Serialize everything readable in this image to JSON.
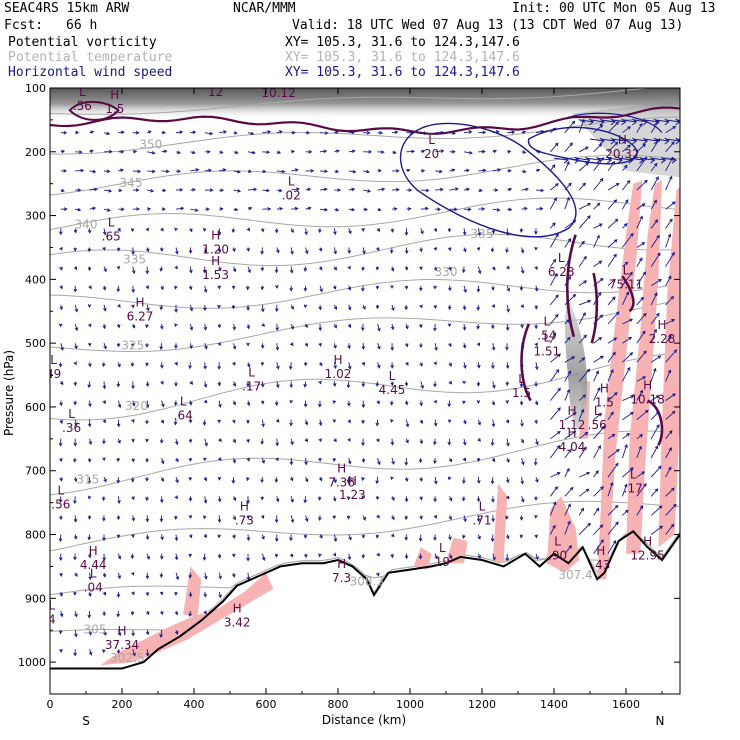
{
  "header": {
    "model": "SEAC4RS 15km ARW",
    "org": "NCAR/MMM",
    "init": "Init: 00 UTC Mon 05 Aug 13",
    "fcst_label": "Fcst:",
    "fcst_value": "66 h",
    "valid": "Valid: 18 UTC Wed 07 Aug 13 (13 CDT Wed 07 Aug 13)",
    "fields": [
      {
        "name": "Potential vorticity",
        "xy": "XY= 105.3, 31.6 to 124.3,147.6",
        "color": "#000000"
      },
      {
        "name": "Potential temperature",
        "xy": "XY= 105.3, 31.6 to 124.3,147.6",
        "color": "#b4b4b4"
      },
      {
        "name": "Horizontal wind speed",
        "xy": "XY= 105.3, 31.6 to 124.3,147.6",
        "color": "#1a1a8c"
      }
    ]
  },
  "colors": {
    "pv_fill": "#f7b3b3",
    "pv_contour": "#5a0a45",
    "theta": "#a8a8a8",
    "wind": "#1a1a8c",
    "terrain": "#000000",
    "shade": "#8a8a8a"
  },
  "chart_data": {
    "type": "cross-section",
    "xlabel": "Distance (km)",
    "ylabel": "Pressure (hPa)",
    "x_ticks": [
      0,
      200,
      400,
      600,
      800,
      1000,
      1200,
      1400,
      1600
    ],
    "y_ticks": [
      100,
      200,
      300,
      400,
      500,
      600,
      700,
      800,
      900,
      1000
    ],
    "xlim": [
      0,
      1750
    ],
    "ylim": [
      1050,
      100
    ],
    "y_scale": "linear",
    "left_end": "S",
    "right_end": "N",
    "terrain": {
      "x": [
        0,
        200,
        260,
        300,
        360,
        420,
        480,
        520,
        560,
        600,
        640,
        700,
        760,
        800,
        840,
        880,
        900,
        940,
        1000,
        1060,
        1100,
        1140,
        1200,
        1260,
        1320,
        1360,
        1400,
        1440,
        1480,
        1520,
        1540,
        1580,
        1620,
        1660,
        1700,
        1750
      ],
      "p": [
        1010,
        1010,
        1000,
        980,
        960,
        935,
        905,
        880,
        870,
        860,
        850,
        845,
        845,
        840,
        850,
        870,
        895,
        860,
        855,
        850,
        845,
        835,
        840,
        850,
        830,
        850,
        830,
        845,
        820,
        870,
        860,
        810,
        795,
        820,
        840,
        800
      ]
    },
    "theta_labels": [
      {
        "text": "350",
        "x": 280,
        "p": 195
      },
      {
        "text": "345",
        "x": 225,
        "p": 255
      },
      {
        "text": "340",
        "x": 100,
        "p": 320
      },
      {
        "text": "335",
        "x": 235,
        "p": 375
      },
      {
        "text": "330",
        "x": 1100,
        "p": 395
      },
      {
        "text": "335",
        "x": 1200,
        "p": 335
      },
      {
        "text": "325",
        "x": 230,
        "p": 510
      },
      {
        "text": "320",
        "x": 240,
        "p": 605
      },
      {
        "text": "315",
        "x": 105,
        "p": 720
      },
      {
        "text": "305",
        "x": 125,
        "p": 955
      },
      {
        "text": "302.5",
        "x": 215,
        "p": 1000
      },
      {
        "text": "307.4",
        "x": 1460,
        "p": 870
      },
      {
        "text": "308.3",
        "x": 880,
        "p": 880
      }
    ],
    "extrema": [
      {
        "kind": "L",
        "value": ".56",
        "x": 90,
        "p": 125
      },
      {
        "kind": "H",
        "value": "1.5",
        "x": 180,
        "p": 130
      },
      {
        "kind": "L",
        "value": "12",
        "x": 460,
        "p": 103
      },
      {
        "kind": "H",
        "value": "10.12",
        "x": 635,
        "p": 105
      },
      {
        "kind": "L",
        "value": ".02",
        "x": 670,
        "p": 265
      },
      {
        "kind": "L",
        "value": ".65",
        "x": 170,
        "p": 330
      },
      {
        "kind": "H",
        "value": "1.20",
        "x": 460,
        "p": 350
      },
      {
        "kind": "H",
        "value": "1.53",
        "x": 460,
        "p": 390
      },
      {
        "kind": "H",
        "value": "6.27",
        "x": 250,
        "p": 455
      },
      {
        "kind": "L",
        "value": "49",
        "x": 10,
        "p": 545
      },
      {
        "kind": "L",
        "value": ".17",
        "x": 560,
        "p": 565
      },
      {
        "kind": "H",
        "value": "1.02",
        "x": 800,
        "p": 545
      },
      {
        "kind": "L",
        "value": "4.45",
        "x": 950,
        "p": 570
      },
      {
        "kind": "L",
        "value": ".36",
        "x": 60,
        "p": 630
      },
      {
        "kind": "L",
        "value": ".64",
        "x": 370,
        "p": 610
      },
      {
        "kind": "H",
        "value": "7.36",
        "x": 810,
        "p": 715
      },
      {
        "kind": "H",
        "value": "1.23",
        "x": 840,
        "p": 735
      },
      {
        "kind": "L",
        "value": ".56",
        "x": 30,
        "p": 750
      },
      {
        "kind": "H",
        "value": ".73",
        "x": 540,
        "p": 775
      },
      {
        "kind": "L",
        "value": ".71",
        "x": 1200,
        "p": 775
      },
      {
        "kind": "H",
        "value": "4.44",
        "x": 120,
        "p": 845
      },
      {
        "kind": "L",
        "value": ".04",
        "x": 120,
        "p": 880
      },
      {
        "kind": "H",
        "value": "7.3",
        "x": 810,
        "p": 865
      },
      {
        "kind": "H",
        "value": "3.42",
        "x": 520,
        "p": 935
      },
      {
        "kind": "L",
        "value": "4",
        "x": 5,
        "p": 930
      },
      {
        "kind": "H",
        "value": "37.34",
        "x": 200,
        "p": 970
      },
      {
        "kind": "H",
        "value": "20.32",
        "x": 1590,
        "p": 200
      },
      {
        "kind": "L",
        "value": "20",
        "x": 1060,
        "p": 200
      },
      {
        "kind": "L",
        "value": "6.28",
        "x": 1420,
        "p": 385
      },
      {
        "kind": "L",
        "value": "75.11",
        "x": 1600,
        "p": 405
      },
      {
        "kind": "L",
        "value": ".54",
        "x": 1380,
        "p": 485
      },
      {
        "kind": "H",
        "value": "2.28",
        "x": 1700,
        "p": 490
      },
      {
        "kind": "L",
        "value": "1.5",
        "x": 1310,
        "p": 575
      },
      {
        "kind": "H",
        "value": "1.5",
        "x": 1540,
        "p": 590
      },
      {
        "kind": "H",
        "value": "10.18",
        "x": 1660,
        "p": 585
      },
      {
        "kind": "H",
        "value": "1.12",
        "x": 1450,
        "p": 625
      },
      {
        "kind": "L",
        "value": ".56",
        "x": 1520,
        "p": 625
      },
      {
        "kind": "H",
        "value": "4.04",
        "x": 1450,
        "p": 660
      },
      {
        "kind": "L",
        "value": ".17",
        "x": 1620,
        "p": 725
      },
      {
        "kind": "L",
        "value": ".90",
        "x": 1410,
        "p": 830
      },
      {
        "kind": "H",
        "value": ".43",
        "x": 1530,
        "p": 845
      },
      {
        "kind": "H",
        "value": "12.95",
        "x": 1660,
        "p": 830
      },
      {
        "kind": "L",
        "value": "19",
        "x": 1090,
        "p": 840
      },
      {
        "kind": "L",
        "value": "1.51",
        "x": 1380,
        "p": 510
      }
    ]
  }
}
